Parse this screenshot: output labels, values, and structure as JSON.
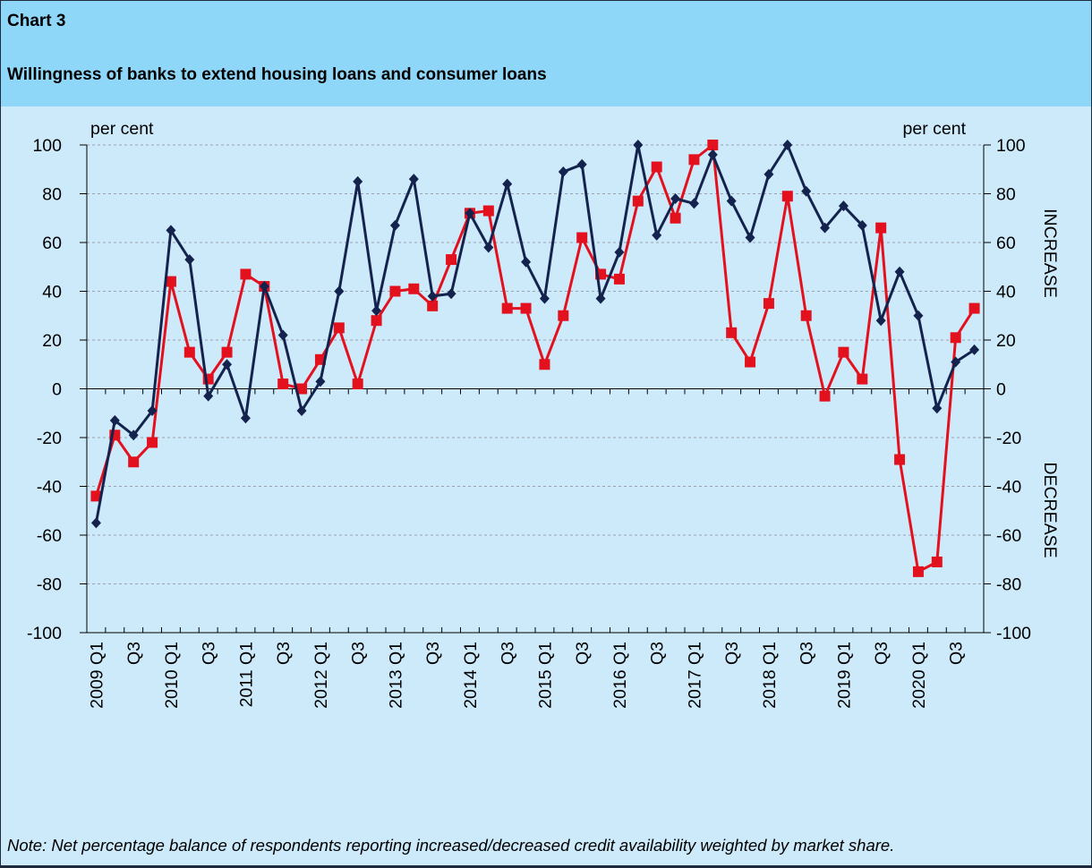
{
  "header": {
    "label": "Chart 3",
    "title": "Willingness of banks to extend housing loans and consumer loans"
  },
  "note": "Note: Net percentage balance of respondents reporting increased/decreased credit availability weighted by market share.",
  "chart_data": {
    "type": "line",
    "ylim": [
      -100,
      100
    ],
    "yticks": [
      100,
      80,
      60,
      40,
      20,
      0,
      -20,
      -40,
      -60,
      -80,
      -100
    ],
    "ylabel_left": "per cent",
    "ylabel_right": "per cent",
    "side_label_top": "INCREASE",
    "side_label_bottom": "DECREASE",
    "grid": "horizontal dashed",
    "legend_position": "bottom-center",
    "categories": [
      "2009 Q1",
      "Q2",
      "Q3",
      "Q4",
      "2010 Q1",
      "Q2",
      "Q3",
      "Q4",
      "2011 Q1",
      "Q2",
      "Q3",
      "Q4",
      "2012 Q1",
      "Q2",
      "Q3",
      "Q4",
      "2013 Q1",
      "Q2",
      "Q3",
      "Q4",
      "2014 Q1",
      "Q2",
      "Q3",
      "Q4",
      "2015 Q1",
      "Q2",
      "Q3",
      "Q4",
      "2016 Q1",
      "Q2",
      "Q3",
      "Q4",
      "2017 Q1",
      "Q2",
      "Q3",
      "Q4",
      "2018 Q1",
      "Q2",
      "Q3",
      "Q4",
      "2019 Q1",
      "Q2",
      "Q3",
      "Q4",
      "2020 Q1",
      "Q2",
      "Q3",
      "Q4"
    ],
    "tick_labels": [
      "2009 Q1",
      "",
      "Q3",
      "",
      "2010 Q1",
      "",
      "Q3",
      "",
      "2011 Q1",
      "",
      "Q3",
      "",
      "2012 Q1",
      "",
      "Q3",
      "",
      "2013 Q1",
      "",
      "Q3",
      "",
      "2014 Q1",
      "",
      "Q3",
      "",
      "2015 Q1",
      "",
      "Q3",
      "",
      "2016 Q1",
      "",
      "Q3",
      "",
      "2017 Q1",
      "",
      "Q3",
      "",
      "2018 Q1",
      "",
      "Q3",
      "",
      "2019 Q1",
      "",
      "Q3",
      "",
      "2020 Q1",
      "",
      "Q3",
      ""
    ],
    "series": [
      {
        "name": "Consumer loans",
        "color": "#e3101e",
        "marker": "square",
        "values": [
          -44,
          -19,
          -30,
          -22,
          44,
          15,
          4,
          15,
          47,
          42,
          2,
          0,
          12,
          25,
          2,
          28,
          40,
          41,
          34,
          53,
          72,
          73,
          33,
          33,
          10,
          30,
          62,
          47,
          45,
          77,
          91,
          70,
          94,
          100,
          23,
          11,
          35,
          79,
          30,
          -3,
          15,
          4,
          66,
          -29,
          -75,
          -71,
          21,
          33
        ]
      },
      {
        "name": "Housing loans",
        "color": "#14234d",
        "marker": "diamond",
        "values": [
          -55,
          -13,
          -19,
          -9,
          65,
          53,
          -3,
          10,
          -12,
          42,
          22,
          -9,
          3,
          40,
          85,
          32,
          67,
          86,
          38,
          39,
          72,
          58,
          84,
          52,
          37,
          89,
          92,
          37,
          56,
          100,
          63,
          78,
          76,
          96,
          77,
          62,
          88,
          100,
          81,
          66,
          75,
          67,
          28,
          48,
          30,
          -8,
          11,
          16
        ]
      }
    ]
  }
}
